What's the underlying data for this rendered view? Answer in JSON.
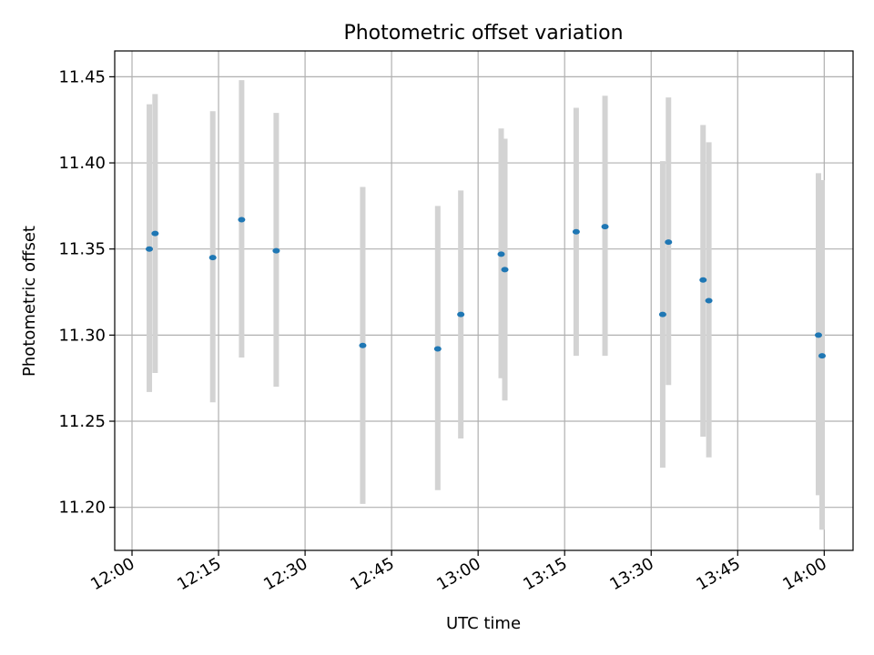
{
  "chart_data": {
    "type": "scatter",
    "title": "Photometric offset variation",
    "xlabel": "UTC time",
    "ylabel": "Photometric offset",
    "grid": true,
    "xlim": [
      "11:57",
      "14:05"
    ],
    "ylim": [
      11.175,
      11.465
    ],
    "x_ticks": [
      "12:00",
      "12:15",
      "12:30",
      "12:45",
      "13:00",
      "13:15",
      "13:30",
      "13:45",
      "14:00"
    ],
    "y_ticks": [
      "11.20",
      "11.25",
      "11.30",
      "11.35",
      "11.40",
      "11.45"
    ],
    "marker_color": "#1f77b4",
    "errorbar_color": "#d3d3d3",
    "series": [
      {
        "points": [
          {
            "x": "12:03",
            "y": 11.35,
            "lo": 11.267,
            "hi": 11.434
          },
          {
            "x": "12:04",
            "y": 11.359,
            "lo": 11.278,
            "hi": 11.44
          },
          {
            "x": "12:14",
            "y": 11.345,
            "lo": 11.261,
            "hi": 11.43
          },
          {
            "x": "12:19",
            "y": 11.367,
            "lo": 11.287,
            "hi": 11.448
          },
          {
            "x": "12:25",
            "y": 11.349,
            "lo": 11.27,
            "hi": 11.429
          },
          {
            "x": "12:40",
            "y": 11.294,
            "lo": 11.202,
            "hi": 11.386
          },
          {
            "x": "12:53",
            "y": 11.292,
            "lo": 11.21,
            "hi": 11.375
          },
          {
            "x": "12:57",
            "y": 11.312,
            "lo": 11.24,
            "hi": 11.384
          },
          {
            "x": "13:04",
            "y": 11.347,
            "lo": 11.275,
            "hi": 11.42
          },
          {
            "x": "13:04",
            "y": 11.338,
            "lo": 11.262,
            "hi": 11.414
          },
          {
            "x": "13:17",
            "y": 11.36,
            "lo": 11.288,
            "hi": 11.432
          },
          {
            "x": "13:22",
            "y": 11.363,
            "lo": 11.288,
            "hi": 11.439
          },
          {
            "x": "13:32",
            "y": 11.312,
            "lo": 11.223,
            "hi": 11.401
          },
          {
            "x": "13:33",
            "y": 11.354,
            "lo": 11.271,
            "hi": 11.438
          },
          {
            "x": "13:39",
            "y": 11.332,
            "lo": 11.241,
            "hi": 11.422
          },
          {
            "x": "13:40",
            "y": 11.32,
            "lo": 11.229,
            "hi": 11.412
          },
          {
            "x": "13:59",
            "y": 11.3,
            "lo": 11.207,
            "hi": 11.394
          },
          {
            "x": "13:59",
            "y": 11.288,
            "lo": 11.187,
            "hi": 11.39
          }
        ]
      }
    ]
  }
}
